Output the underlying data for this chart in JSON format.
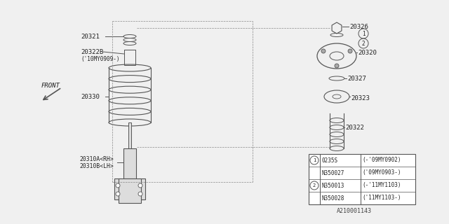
{
  "bg_color": "#f5f5f5",
  "border_color": "#cccccc",
  "line_color": "#555555",
  "text_color": "#222222",
  "title": "",
  "diagram_id": "A210001143",
  "parts": [
    {
      "id": "20321",
      "label": "20321"
    },
    {
      "id": "20322B",
      "label": "20322B\n('10MY0909-)"
    },
    {
      "id": "20330",
      "label": "20330"
    },
    {
      "id": "20310A",
      "label": "20310A<RH>\n20310B<LH>"
    },
    {
      "id": "20326",
      "label": "20326"
    },
    {
      "id": "20320",
      "label": "20320"
    },
    {
      "id": "20327",
      "label": "20327"
    },
    {
      "id": "20323",
      "label": "20323"
    },
    {
      "id": "20322",
      "label": "20322"
    }
  ],
  "legend_rows": [
    {
      "circle": "1",
      "col1": "0235S",
      "col2": "(-'09MY0902)"
    },
    {
      "circle": "",
      "col1": "N350027",
      "col2": "('09MY0903-)"
    },
    {
      "circle": "2",
      "col1": "N350013",
      "col2": "(-'11MY1103)"
    },
    {
      "circle": "",
      "col1": "N350028",
      "col2": "('11MY1103-)"
    }
  ]
}
